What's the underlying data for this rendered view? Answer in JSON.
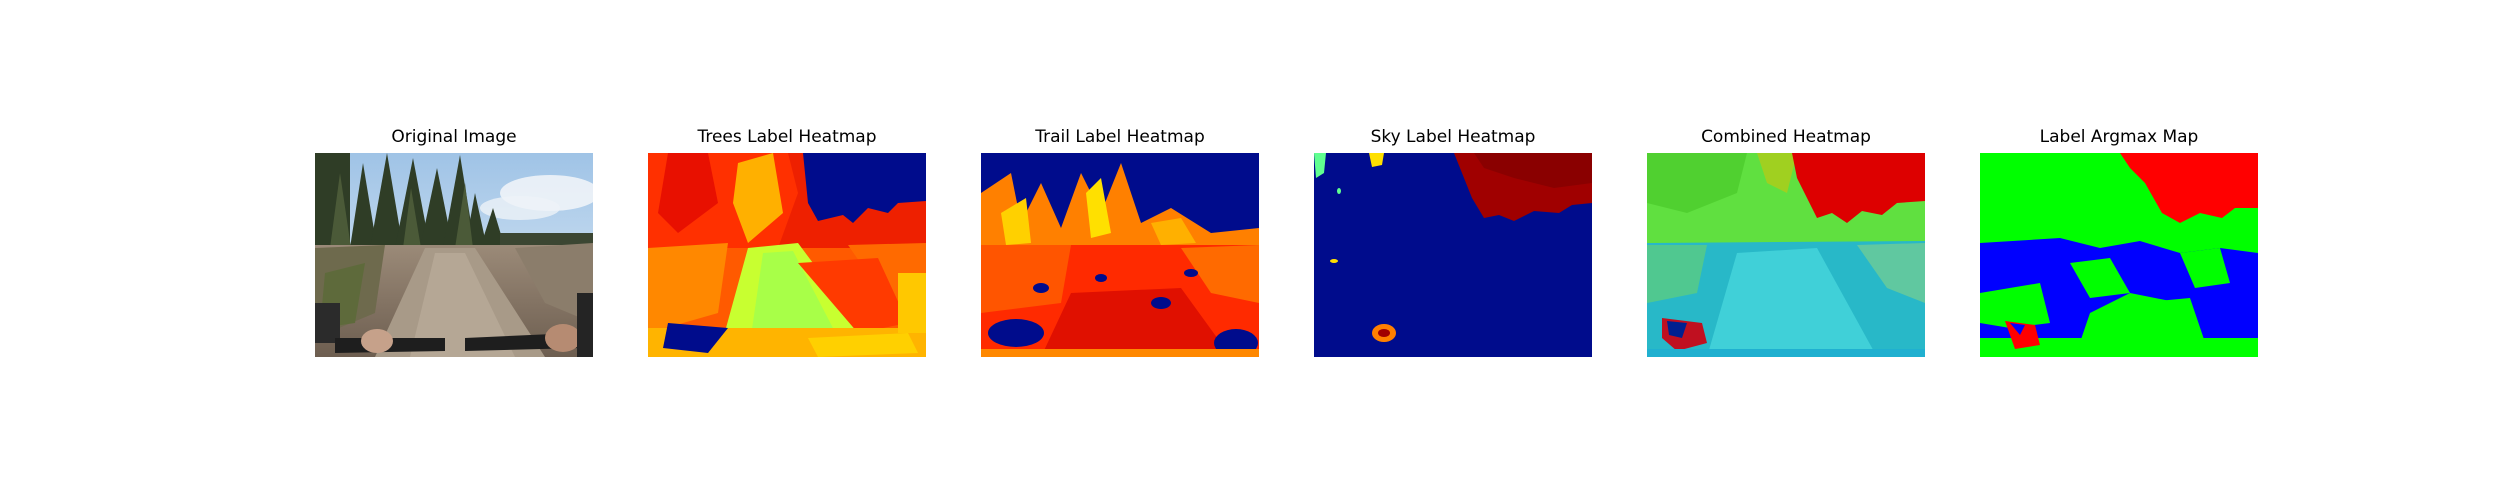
{
  "panels": [
    {
      "title": "Original Image",
      "image": "photo of a dirt mountain-bike trail through cleared forest with evergreen trees, sky and handlebars"
    },
    {
      "title": "Trees Label Heatmap",
      "image": "jet colormap heatmap"
    },
    {
      "title": "Trail Label Heatmap",
      "image": "jet colormap heatmap"
    },
    {
      "title": "Sky Label Heatmap",
      "image": "jet colormap heatmap"
    },
    {
      "title": "Combined Heatmap",
      "image": "jet colormap heatmap"
    },
    {
      "title": "Label Argmax Map",
      "image": "segmentation map (green, blue, red)"
    }
  ]
}
